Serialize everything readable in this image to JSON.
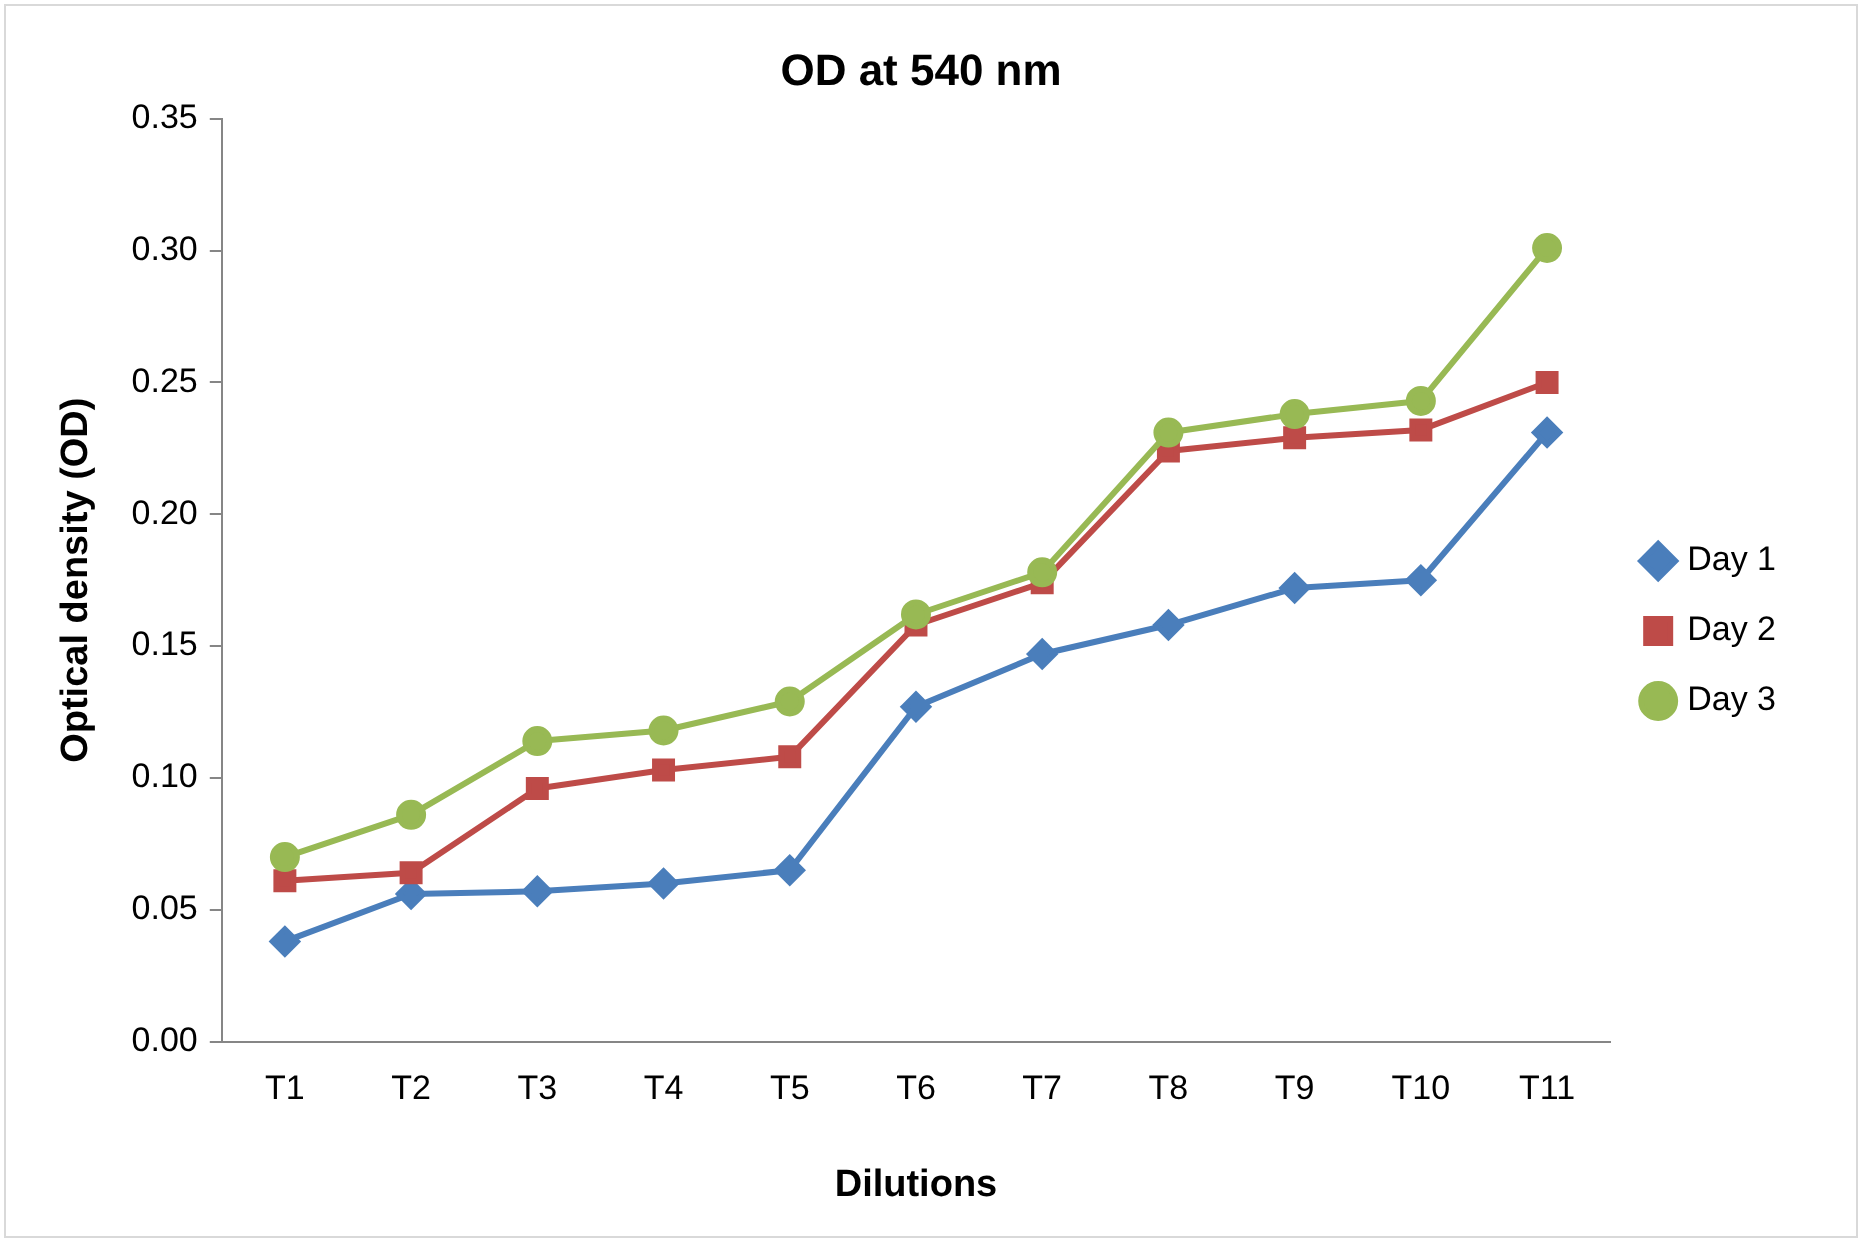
{
  "chart_data": {
    "type": "line",
    "title": "OD at 540 nm",
    "xlabel": "Dilutions",
    "ylabel": "Optical density (OD)",
    "categories": [
      "T1",
      "T2",
      "T3",
      "T4",
      "T5",
      "T6",
      "T7",
      "T8",
      "T9",
      "T10",
      "T11"
    ],
    "series": [
      {
        "name": "Day 1",
        "color": "#4a7ebb",
        "marker": "diamond",
        "values": [
          0.038,
          0.056,
          0.057,
          0.06,
          0.065,
          0.127,
          0.147,
          0.158,
          0.172,
          0.175,
          0.231
        ]
      },
      {
        "name": "Day 2",
        "color": "#be4b48",
        "marker": "square",
        "values": [
          0.061,
          0.064,
          0.096,
          0.103,
          0.108,
          0.158,
          0.174,
          0.224,
          0.229,
          0.232,
          0.25
        ]
      },
      {
        "name": "Day 3",
        "color": "#98b954",
        "marker": "circle",
        "values": [
          0.07,
          0.086,
          0.114,
          0.118,
          0.129,
          0.162,
          0.178,
          0.231,
          0.238,
          0.243,
          0.301
        ]
      }
    ],
    "ylim": [
      0,
      0.35
    ],
    "yticks": [
      {
        "value": 0,
        "label": "0.00"
      },
      {
        "value": 0.05,
        "label": "0.05"
      },
      {
        "value": 0.1,
        "label": "0.10"
      },
      {
        "value": 0.15,
        "label": "0.15"
      },
      {
        "value": 0.2,
        "label": "0.20"
      },
      {
        "value": 0.25,
        "label": "0.25"
      },
      {
        "value": 0.3,
        "label": "0.30"
      },
      {
        "value": 0.35,
        "label": "0.35"
      }
    ],
    "grid": false,
    "legend": "right",
    "line_style": "solid"
  }
}
